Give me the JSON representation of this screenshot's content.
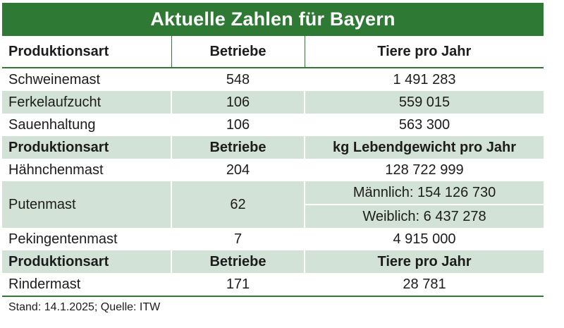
{
  "title": "Aktuelle Zahlen für Bayern",
  "sections": [
    {
      "header": [
        "Produktionsart",
        "Betriebe",
        "Tiere pro Jahr"
      ],
      "rows": [
        {
          "name": "Schweinemast",
          "betriebe": "548",
          "value": "1 491 283"
        },
        {
          "name": "Ferkelaufzucht",
          "betriebe": "106",
          "value": "559 015"
        },
        {
          "name": "Sauenhaltung",
          "betriebe": "106",
          "value": "563 300"
        }
      ]
    },
    {
      "header": [
        "Produktionsart",
        "Betriebe",
        "kg Lebendgewicht pro Jahr"
      ],
      "rows": [
        {
          "name": "Hähnchenmast",
          "betriebe": "204",
          "value": "128 722 999"
        },
        {
          "name": "Putenmast",
          "betriebe": "62",
          "value_male": "Männlich: 154 126 730",
          "value_female": "Weiblich: 6 437 278"
        },
        {
          "name": "Pekingentenmast",
          "betriebe": "7",
          "value": "4 915 000"
        }
      ]
    },
    {
      "header": [
        "Produktionsart",
        "Betriebe",
        "Tiere pro Jahr"
      ],
      "rows": [
        {
          "name": "Rindermast",
          "betriebe": "171",
          "value": "28 781"
        }
      ]
    }
  ],
  "footer": "Stand: 14.1.2025; Quelle: ITW",
  "colors": {
    "accent": "#2e7a35",
    "row_shade": "#d3e2d6"
  }
}
